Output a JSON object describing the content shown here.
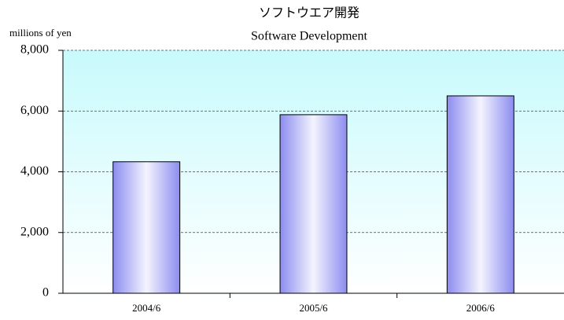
{
  "chart_data": {
    "type": "bar",
    "title": "ソフトウエア開発",
    "subtitle": "Software Development",
    "y_label": "millions of yen",
    "categories": [
      "2004/6",
      "2005/6",
      "2006/6"
    ],
    "values": [
      4330,
      5880,
      6500
    ],
    "color": "#8c8cf0",
    "ylim": [
      0,
      8000
    ],
    "yticks": [
      0,
      {
        "value": 2000,
        "label": "2,000"
      },
      {
        "value": 4000,
        "label": "4,000"
      },
      {
        "value": 6000,
        "label": "6,000"
      },
      {
        "value": 8000,
        "label": "8,000"
      }
    ],
    "grid": true
  }
}
